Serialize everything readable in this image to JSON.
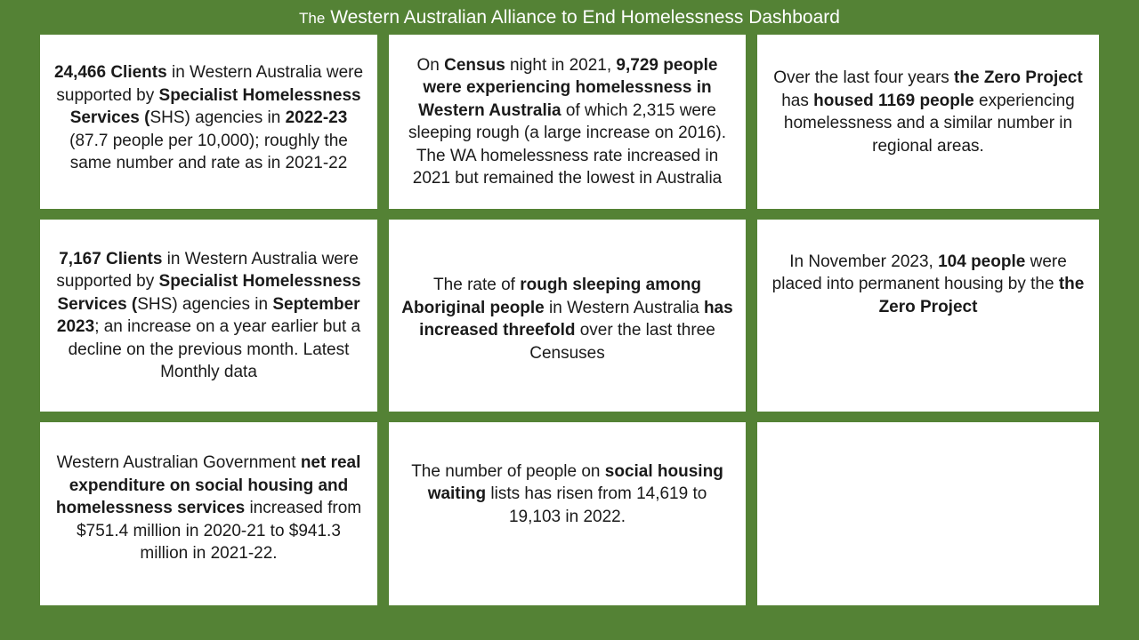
{
  "header": {
    "title_prefix": "The",
    "title_main": "Western Australian Alliance to End Homelessness Dashboard"
  },
  "cards": [
    {
      "segments": [
        {
          "b": "24,466 Clients"
        },
        {
          "t": " in Western Australia were supported by "
        },
        {
          "b": "Specialist Homelessness Services ("
        },
        {
          "t": "SHS) agencies in "
        },
        {
          "b": "2022-23"
        },
        {
          "t": " (87.7 people per 10,000); roughly the same number and rate as in 2021-22"
        }
      ]
    },
    {
      "segments": [
        {
          "t": "On "
        },
        {
          "b": "Census"
        },
        {
          "t": " night in 2021, "
        },
        {
          "b": "9,729 people were experiencing homelessness in Western Australia"
        },
        {
          "t": " of which 2,315 were sleeping rough (a large increase on 2016). The WA homelessness rate increased in 2021 but remained the lowest in Australia"
        }
      ]
    },
    {
      "segments": [
        {
          "t": "Over the last four years "
        },
        {
          "b": "the Zero Project"
        },
        {
          "t": " has "
        },
        {
          "b": "housed 1169 people"
        },
        {
          "t": " experiencing homelessness and a similar number  in regional areas."
        }
      ]
    },
    {
      "segments": [
        {
          "b": "7,167 Clients"
        },
        {
          "t": " in Western Australia were supported by "
        },
        {
          "b": "Specialist Homelessness Services ("
        },
        {
          "t": "SHS) agencies in "
        },
        {
          "b": "September 2023"
        },
        {
          "t": "; an increase on a year earlier but a decline on the previous month. Latest Monthly data"
        }
      ]
    },
    {
      "segments": [
        {
          "t": "The rate of "
        },
        {
          "b": "rough sleeping among Aboriginal people"
        },
        {
          "t": " in Western Australia "
        },
        {
          "b": "has increased threefold"
        },
        {
          "t": " over the last three Censuses"
        }
      ]
    },
    {
      "segments": [
        {
          "t": "In November 2023, "
        },
        {
          "b": "104 people"
        },
        {
          "t": " were placed into permanent housing by the "
        },
        {
          "b": "the Zero Project"
        }
      ]
    },
    {
      "segments": [
        {
          "t": "Western Australian Government "
        },
        {
          "b": "net real expenditure on social housing and homelessness services"
        },
        {
          "t": " increased from $751.4 million in 2020-21 to $941.3 million in 2021-22."
        }
      ]
    },
    {
      "segments": [
        {
          "t": "The number of people on "
        },
        {
          "b": "social housing waiting"
        },
        {
          "t": " lists has risen from 14,619 to 19,103 in 2022."
        }
      ]
    },
    {
      "segments": []
    }
  ]
}
